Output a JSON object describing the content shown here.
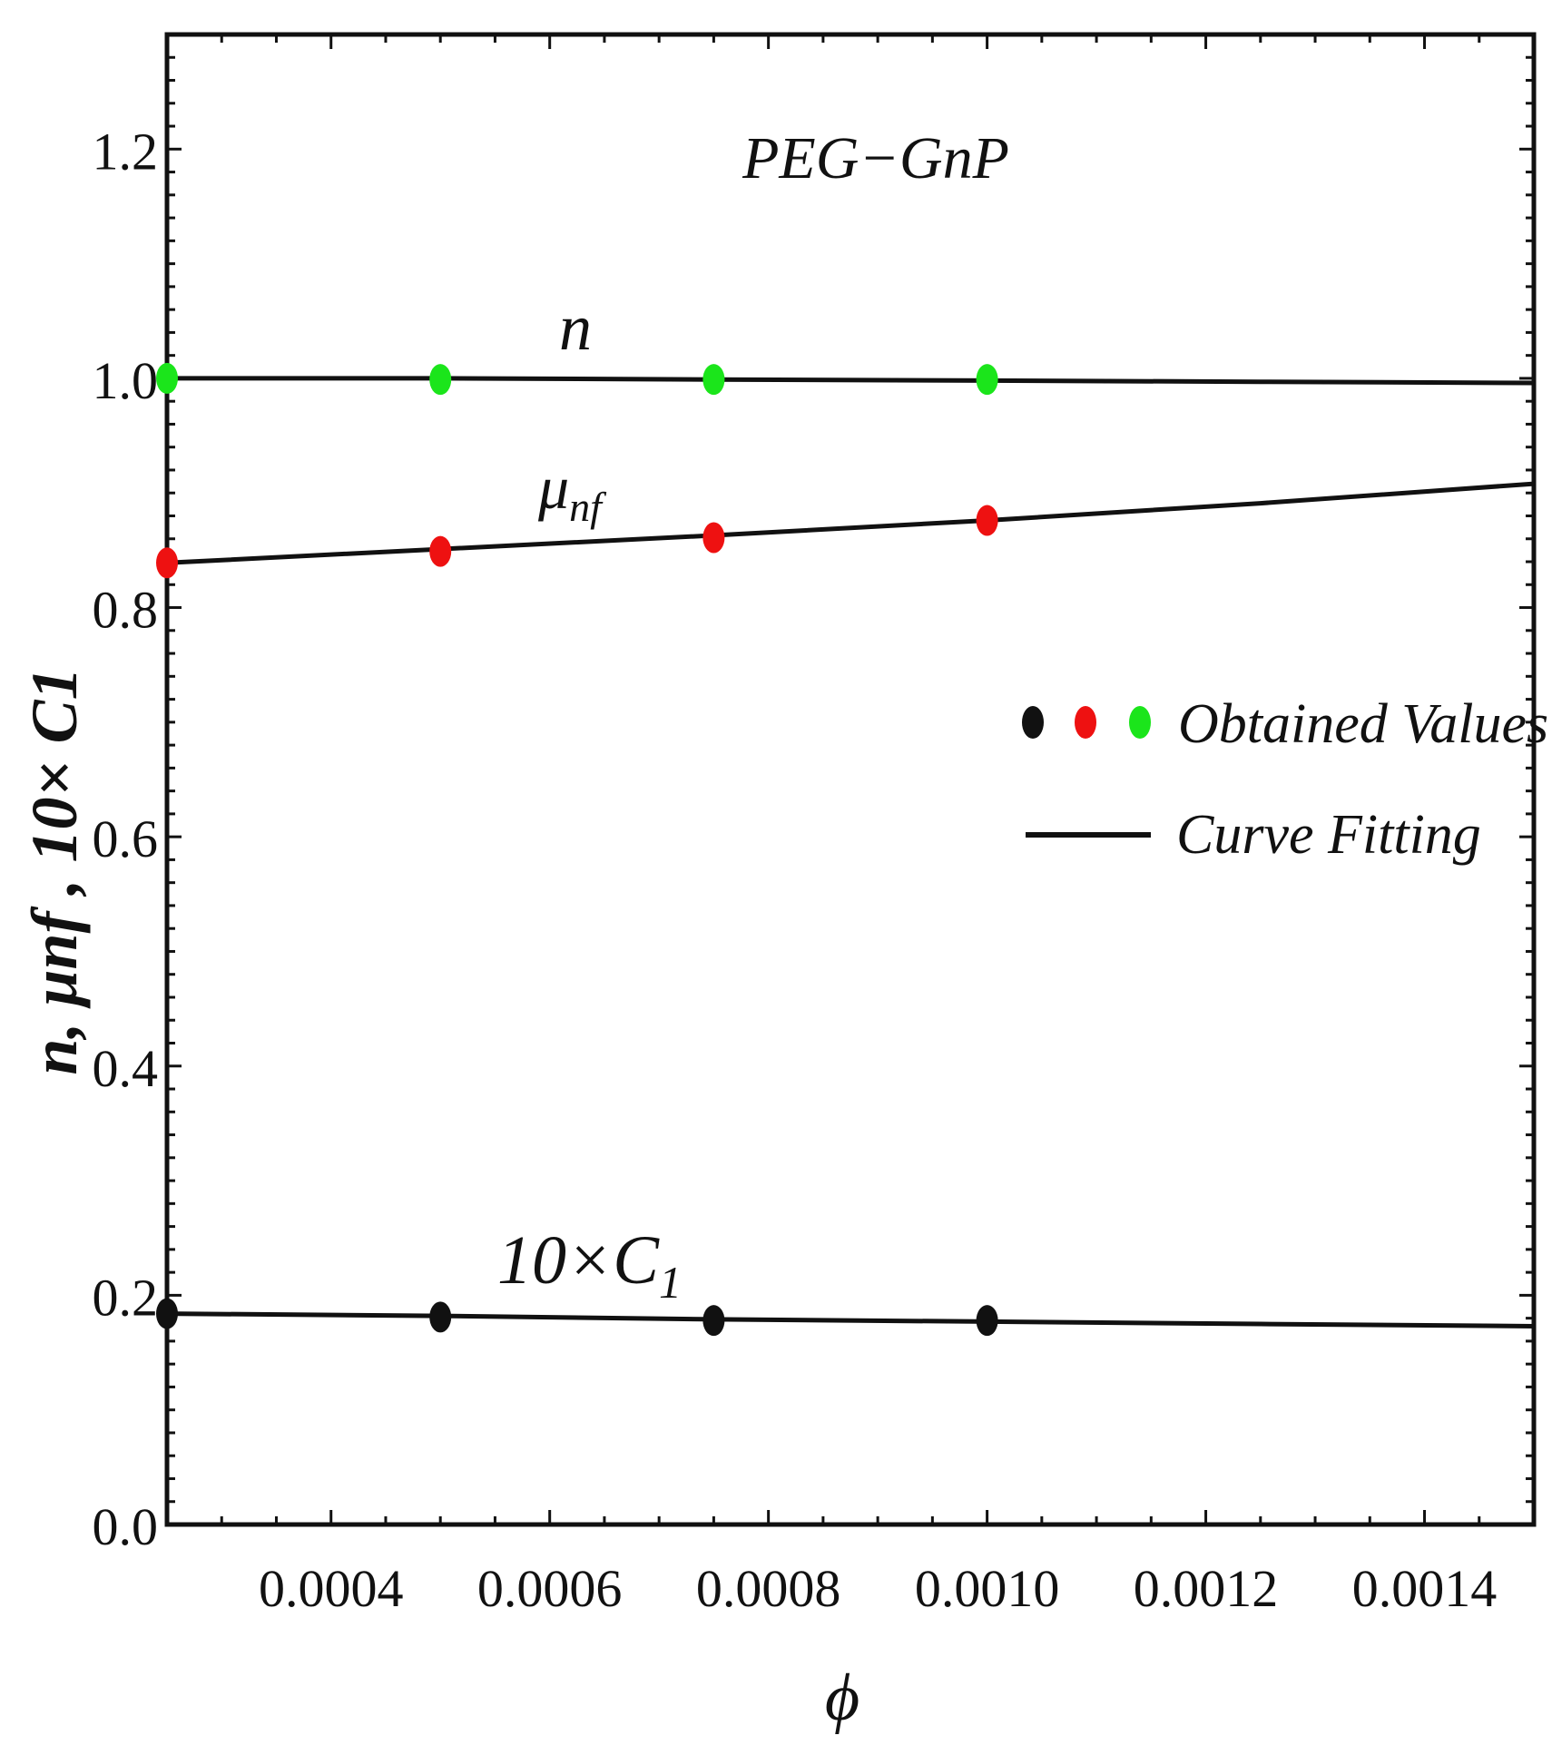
{
  "chart_data": {
    "type": "scatter",
    "title": "PEG−GnP",
    "xlabel": "ϕ",
    "ylabel": "n, μnf , 10× C1",
    "xlim": [
      0.00025,
      0.0015
    ],
    "ylim": [
      0.0,
      1.3
    ],
    "x_ticks": [
      0.0004,
      0.0006,
      0.0008,
      0.001,
      0.0012,
      0.0014
    ],
    "x_tick_labels": [
      "0.0004",
      "0.0006",
      "0.0008",
      "0.0010",
      "0.0012",
      "0.0014"
    ],
    "y_ticks": [
      0.0,
      0.2,
      0.4,
      0.6,
      0.8,
      1.0,
      1.2
    ],
    "y_tick_labels": [
      "0.0",
      "0.2",
      "0.4",
      "0.6",
      "0.8",
      "1.0",
      "1.2"
    ],
    "series": [
      {
        "name": "n",
        "label_main": "n",
        "label_sub": "",
        "color": "#1be51b",
        "points_x": [
          0.00025,
          0.0005,
          0.00075,
          0.001
        ],
        "points_y": [
          1.0,
          0.999,
          0.999,
          0.999
        ],
        "fit_x": [
          0.00025,
          0.0005,
          0.00075,
          0.001,
          0.00125,
          0.0015
        ],
        "fit_y": [
          1.0,
          1.0,
          0.999,
          0.998,
          0.997,
          0.996
        ]
      },
      {
        "name": "μnf",
        "label_main": "μ",
        "label_sub": "nf",
        "color": "#ee1111",
        "points_x": [
          0.00025,
          0.0005,
          0.00075,
          0.001
        ],
        "points_y": [
          0.839,
          0.849,
          0.861,
          0.876
        ],
        "fit_x": [
          0.00025,
          0.0005,
          0.00075,
          0.001,
          0.00125,
          0.0015
        ],
        "fit_y": [
          0.839,
          0.851,
          0.863,
          0.876,
          0.891,
          0.908
        ]
      },
      {
        "name": "10×C1",
        "label_main": "10×C",
        "label_sub": "1",
        "color": "#111111",
        "points_x": [
          0.00025,
          0.0005,
          0.00075,
          0.001
        ],
        "points_y": [
          0.184,
          0.181,
          0.178,
          0.178
        ],
        "fit_x": [
          0.00025,
          0.0005,
          0.00075,
          0.001,
          0.00125,
          0.0015
        ],
        "fit_y": [
          0.184,
          0.182,
          0.179,
          0.177,
          0.175,
          0.173
        ]
      }
    ],
    "legend": {
      "placement": "right",
      "obtained_label": "Obtained Values",
      "fit_label": "Curve Fitting",
      "dot_colors": [
        "#111111",
        "#ee1111",
        "#1be51b"
      ]
    },
    "grid": false
  }
}
